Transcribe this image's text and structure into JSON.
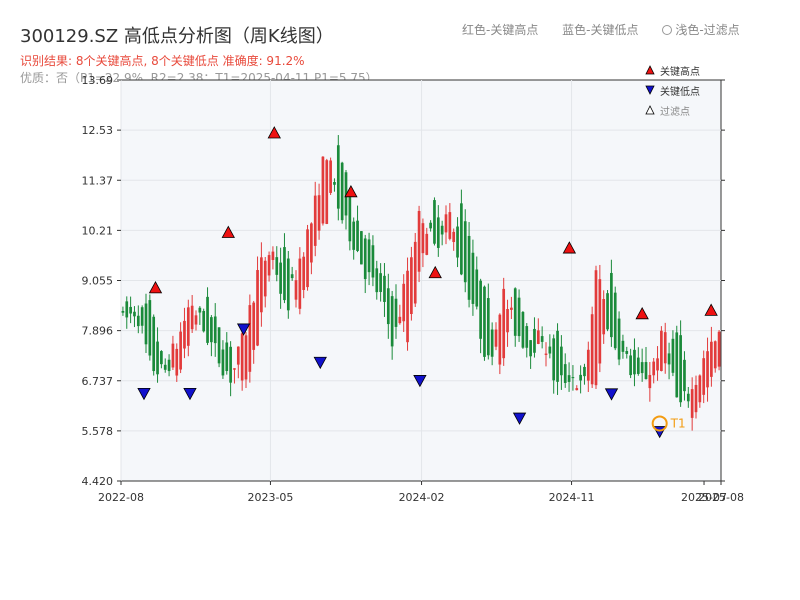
{
  "title": "300129.SZ 高低点分析图（周K线图）",
  "subtitle": "识别结果: 8个关键高点, 8个关键低点  准确度: 91.2%",
  "subtitle2": "优质：否（P1=22.9%, R2=2.38；T1=2025-04-11 P1=5.75）",
  "top_legend": [
    "红色-关键高点",
    "蓝色-关键低点",
    "浅色-过滤点"
  ],
  "colors": {
    "up": "#e23b3b",
    "down": "#1a8a3a",
    "high": "#ee1111",
    "low": "#1111cc",
    "t1": "#f39c12"
  },
  "chart_data": {
    "type": "candlestick",
    "title": "300129.SZ 高低点分析图（周K线图）",
    "ylim": [
      4.42,
      13.69
    ],
    "yticks": [
      "4.420",
      "5.578",
      "6.737",
      "7.896",
      "9.055",
      "10.21",
      "11.37",
      "12.53",
      "13.69"
    ],
    "xticks": [
      "2022-08",
      "2023-05",
      "2024-02",
      "2024-11",
      "2025-07",
      "2025-08"
    ],
    "x_range": [
      "2022-08-01",
      "2025-08-01"
    ],
    "legend": [
      "关键高点",
      "关键低点",
      "过滤点"
    ],
    "key_highs": [
      {
        "date": "2022-10-03",
        "value": 8.7
      },
      {
        "date": "2023-02-13",
        "value": 9.98
      },
      {
        "date": "2023-05-08",
        "value": 12.28
      },
      {
        "date": "2023-09-25",
        "value": 10.92
      },
      {
        "date": "2024-02-26",
        "value": 9.05
      },
      {
        "date": "2024-10-28",
        "value": 9.62
      },
      {
        "date": "2025-03-10",
        "value": 8.1
      },
      {
        "date": "2025-07-14",
        "value": 8.18
      }
    ],
    "key_lows": [
      {
        "date": "2022-09-12",
        "value": 6.63
      },
      {
        "date": "2022-12-05",
        "value": 6.63
      },
      {
        "date": "2023-03-13",
        "value": 8.12
      },
      {
        "date": "2023-07-31",
        "value": 7.35
      },
      {
        "date": "2024-01-29",
        "value": 6.93
      },
      {
        "date": "2024-07-29",
        "value": 6.06
      },
      {
        "date": "2025-01-13",
        "value": 6.62
      },
      {
        "date": "2025-04-11",
        "value": 5.75
      }
    ],
    "t1_marker": {
      "label": "T1",
      "date": "2025-04-11",
      "value": 5.75
    },
    "candles_ohlc_sample": [
      [
        8.6,
        9.3,
        8.0,
        8.1
      ],
      [
        8.1,
        8.6,
        7.6,
        8.4
      ],
      [
        8.4,
        8.5,
        7.0,
        7.1
      ],
      [
        7.1,
        7.3,
        6.7,
        6.9
      ],
      [
        6.9,
        7.8,
        6.7,
        7.6
      ],
      [
        7.6,
        8.7,
        7.5,
        8.6
      ],
      [
        8.6,
        8.7,
        7.8,
        7.9
      ],
      [
        7.9,
        8.0,
        7.2,
        7.3
      ],
      [
        7.3,
        7.5,
        6.7,
        6.8
      ],
      [
        6.8,
        7.9,
        6.7,
        7.8
      ],
      [
        7.8,
        9.4,
        7.7,
        9.3
      ],
      [
        9.3,
        10.0,
        9.1,
        9.8
      ],
      [
        9.8,
        9.9,
        8.2,
        8.3
      ],
      [
        8.3,
        9.6,
        8.1,
        9.5
      ],
      [
        9.5,
        10.6,
        9.3,
        10.5
      ],
      [
        10.5,
        12.3,
        10.3,
        12.1
      ],
      [
        12.1,
        12.2,
        10.4,
        10.6
      ],
      [
        10.6,
        11.2,
        9.8,
        10.0
      ],
      [
        10.0,
        10.1,
        9.1,
        9.2
      ],
      [
        9.2,
        9.3,
        8.6,
        8.7
      ],
      [
        8.7,
        8.8,
        7.4,
        7.6
      ],
      [
        7.6,
        9.5,
        7.5,
        9.3
      ],
      [
        9.3,
        10.9,
        9.2,
        10.7
      ],
      [
        10.7,
        10.8,
        9.6,
        9.8
      ],
      [
        9.8,
        10.8,
        9.7,
        10.7
      ],
      [
        10.7,
        10.8,
        9.1,
        9.3
      ],
      [
        9.3,
        9.4,
        8.2,
        8.4
      ],
      [
        8.4,
        9.1,
        6.9,
        7.1
      ],
      [
        7.1,
        9.0,
        7.0,
        8.8
      ],
      [
        8.8,
        8.9,
        7.7,
        7.9
      ],
      [
        7.9,
        8.0,
        7.3,
        7.5
      ],
      [
        7.5,
        7.9,
        7.2,
        7.8
      ],
      [
        7.8,
        7.9,
        6.4,
        6.6
      ],
      [
        6.6,
        7.0,
        6.0,
        6.9
      ],
      [
        6.9,
        7.0,
        6.3,
        6.5
      ],
      [
        6.5,
        9.6,
        6.4,
        9.4
      ],
      [
        9.4,
        9.5,
        7.5,
        7.7
      ],
      [
        7.7,
        8.1,
        7.1,
        7.3
      ],
      [
        7.3,
        7.4,
        6.6,
        6.7
      ],
      [
        6.7,
        7.1,
        6.6,
        7.0
      ],
      [
        7.0,
        8.1,
        6.9,
        7.9
      ],
      [
        7.9,
        8.0,
        5.7,
        6.1
      ],
      [
        6.1,
        6.6,
        6.0,
        6.5
      ],
      [
        6.5,
        7.4,
        6.4,
        7.3
      ],
      [
        7.3,
        8.2,
        7.0,
        7.7
      ]
    ]
  }
}
